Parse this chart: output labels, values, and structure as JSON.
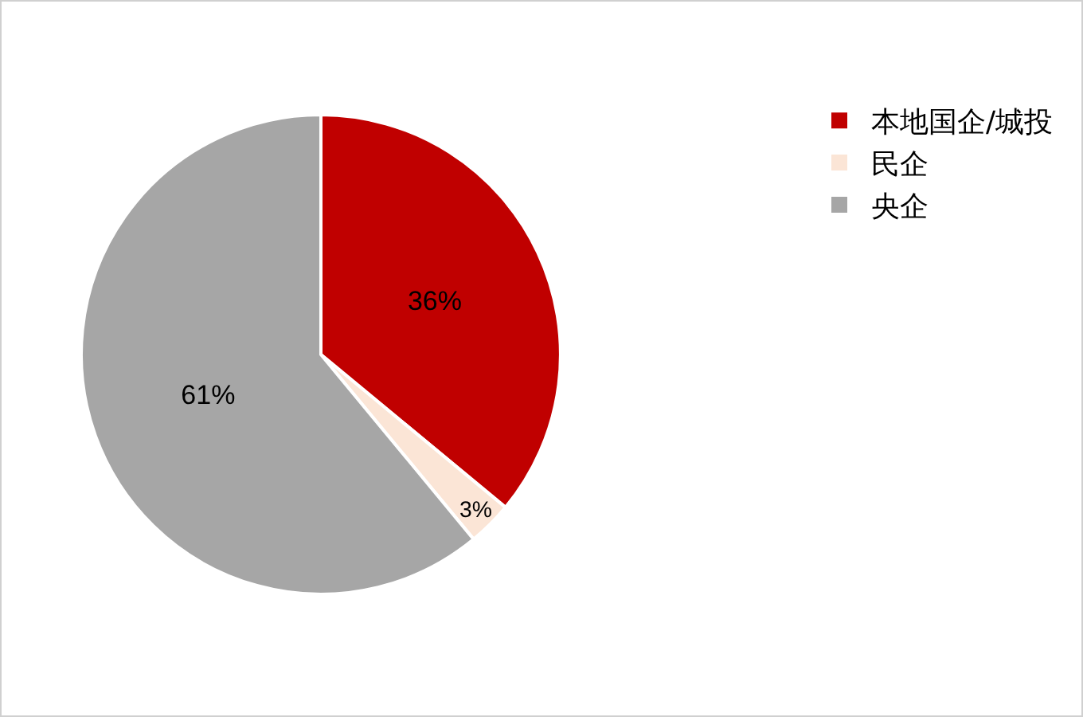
{
  "chart_data": {
    "type": "pie",
    "categories": [
      "本地国企/城投",
      "民企",
      "央企"
    ],
    "values": [
      36,
      3,
      61
    ],
    "colors": [
      "#c00000",
      "#fbe5d6",
      "#a6a6a6"
    ],
    "value_labels": [
      "36%",
      "3%",
      "61%"
    ],
    "legend": "top right"
  }
}
